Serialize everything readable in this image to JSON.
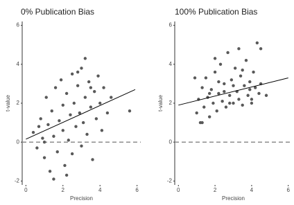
{
  "chart_data": [
    {
      "type": "scatter",
      "title": "0% Publication Bias",
      "x_label": "Precision",
      "y_label": "t-value",
      "color": "#595959",
      "x": [
        0.4,
        0.6,
        0.8,
        0.9,
        1.0,
        1.1,
        1.2,
        1.3,
        1.4,
        1.5,
        1.6,
        1.7,
        1.8,
        1.9,
        2.0,
        2.0,
        2.1,
        2.2,
        2.3,
        2.4,
        2.5,
        2.5,
        2.6,
        2.7,
        2.8,
        2.9,
        3.0,
        3.0,
        3.1,
        3.2,
        3.3,
        3.4,
        3.5,
        3.6,
        3.7,
        3.8,
        3.9,
        4.0,
        4.1,
        4.2,
        4.4,
        4.6,
        5.6,
        3.2,
        2.8,
        1.0,
        0.7,
        2.2,
        1.5,
        3.5
      ],
      "values": [
        0.5,
        -0.3,
        1.2,
        0.2,
        -0.8,
        2.3,
        0.9,
        -1.5,
        1.6,
        0.3,
        2.8,
        -0.5,
        1.1,
        3.2,
        0.6,
        1.9,
        -1.2,
        2.5,
        0.1,
        1.4,
        3.5,
        -0.6,
        2.0,
        0.8,
        2.9,
        1.5,
        -0.2,
        3.8,
        1.0,
        2.3,
        0.4,
        3.1,
        1.8,
        -0.9,
        2.6,
        1.2,
        3.4,
        2.0,
        0.6,
        2.8,
        1.5,
        2.3,
        1.6,
        4.3,
        3.6,
        0.0,
        0.8,
        -1.7,
        -1.9,
        2.8
      ],
      "trend": {
        "x": [
          0,
          5.9
        ],
        "values": [
          0.15,
          2.7
        ],
        "color": "#000000"
      },
      "zero_line": 0,
      "zero_line_color": "#8c8c8c",
      "xlim": [
        -0.2,
        6.2
      ],
      "ylim": [
        -2.2,
        6.2
      ],
      "xticks": [
        0,
        2,
        4,
        6
      ],
      "yticks": [
        -2,
        0,
        2,
        4,
        6
      ]
    },
    {
      "type": "scatter",
      "title": "100% Publication Bias",
      "x_label": "Precision",
      "y_label": "t-value",
      "color": "#595959",
      "x": [
        1.0,
        1.1,
        1.2,
        1.3,
        1.4,
        1.5,
        1.6,
        1.7,
        1.8,
        1.9,
        2.0,
        2.1,
        2.2,
        2.3,
        2.4,
        2.5,
        2.6,
        2.7,
        2.8,
        2.9,
        3.0,
        3.1,
        3.2,
        3.3,
        3.4,
        3.5,
        3.6,
        3.7,
        3.8,
        3.9,
        4.0,
        4.1,
        4.2,
        4.4,
        4.5,
        4.3,
        4.5,
        0.9,
        1.3,
        2.0,
        2.5,
        3.0,
        3.5,
        4.0,
        2.2,
        1.7,
        3.3,
        2.8,
        4.8,
        3.9
      ],
      "values": [
        1.5,
        2.2,
        1.0,
        2.8,
        1.8,
        3.3,
        2.3,
        1.3,
        2.7,
        2.0,
        3.6,
        1.6,
        2.5,
        4.0,
        2.1,
        3.0,
        1.8,
        4.6,
        2.4,
        3.2,
        2.0,
        3.8,
        2.6,
        2.2,
        3.4,
        1.9,
        2.9,
        4.2,
        2.4,
        3.1,
        2.2,
        3.6,
        2.8,
        2.5,
        3.0,
        5.1,
        4.8,
        3.3,
        1.0,
        4.3,
        2.6,
        2.9,
        3.7,
        2.0,
        3.1,
        2.5,
        4.8,
        2.0,
        2.4,
        2.7
      ],
      "trend": {
        "x": [
          0,
          6
        ],
        "values": [
          1.9,
          3.3
        ],
        "color": "#000000"
      },
      "zero_line": 0,
      "zero_line_color": "#8c8c8c",
      "xlim": [
        -0.2,
        6.2
      ],
      "ylim": [
        -2.2,
        6.2
      ],
      "xticks": [
        0,
        2,
        4,
        6
      ],
      "yticks": [
        -2,
        0,
        2,
        4,
        6
      ]
    }
  ]
}
